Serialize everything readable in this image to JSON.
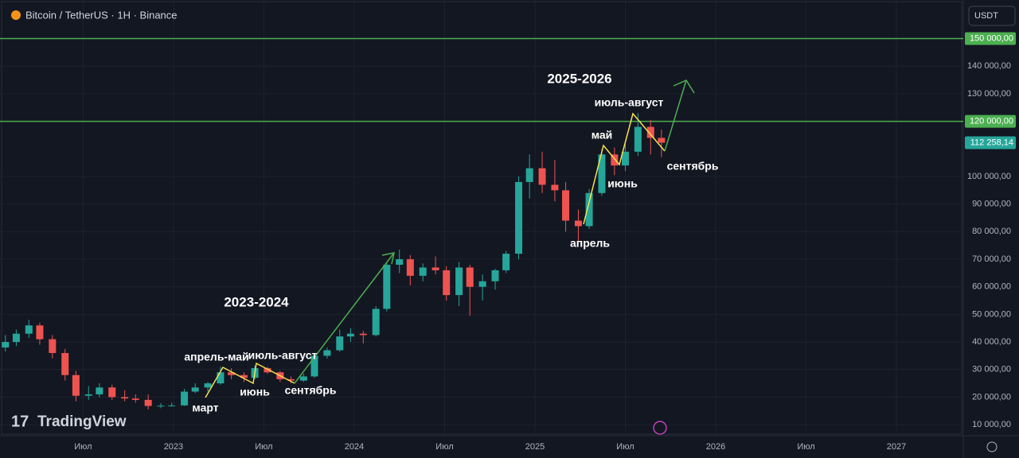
{
  "header": {
    "symbol": "Bitcoin / TetherUS · 1H · Binance",
    "currency": "USDT",
    "watermark": "TradingView"
  },
  "chart_data": {
    "type": "candlestick",
    "x": [
      2022.07,
      2022.13,
      2022.2,
      2022.26,
      2022.33,
      2022.4,
      2022.46,
      2022.53,
      2022.59,
      2022.66,
      2022.73,
      2022.79,
      2022.86,
      2022.93,
      2022.99,
      2023.06,
      2023.12,
      2023.19,
      2023.26,
      2023.32,
      2023.39,
      2023.45,
      2023.52,
      2023.59,
      2023.65,
      2023.72,
      2023.78,
      2023.85,
      2023.92,
      2023.98,
      2024.05,
      2024.12,
      2024.18,
      2024.25,
      2024.31,
      2024.38,
      2024.45,
      2024.51,
      2024.58,
      2024.64,
      2024.71,
      2024.78,
      2024.84,
      2024.91,
      2024.97,
      2025.04,
      2025.11,
      2025.17,
      2025.24,
      2025.3,
      2025.37,
      2025.44,
      2025.5,
      2025.57,
      2025.64,
      2025.7
    ],
    "candles": [
      [
        38000,
        42500,
        36500,
        40000
      ],
      [
        40000,
        44500,
        38500,
        43000
      ],
      [
        43000,
        48000,
        41500,
        46000
      ],
      [
        46000,
        47000,
        39000,
        41000
      ],
      [
        41000,
        42500,
        34000,
        36000
      ],
      [
        36000,
        37500,
        26000,
        28000
      ],
      [
        28000,
        29500,
        18500,
        20500
      ],
      [
        20500,
        24000,
        19000,
        21000
      ],
      [
        21000,
        25000,
        20000,
        23500
      ],
      [
        23500,
        24500,
        19000,
        20000
      ],
      [
        20000,
        22500,
        18500,
        19500
      ],
      [
        19500,
        21000,
        18000,
        19000
      ],
      [
        19000,
        21000,
        15500,
        16800
      ],
      [
        16800,
        17800,
        16000,
        16900
      ],
      [
        16900,
        18000,
        16500,
        17000
      ],
      [
        17000,
        23000,
        16800,
        22000
      ],
      [
        22000,
        25000,
        21500,
        23500
      ],
      [
        23500,
        25500,
        22000,
        25000
      ],
      [
        25000,
        31000,
        24500,
        29000
      ],
      [
        29000,
        30500,
        26500,
        28000
      ],
      [
        28000,
        29000,
        25500,
        27000
      ],
      [
        27000,
        31500,
        26500,
        30500
      ],
      [
        30500,
        31000,
        28500,
        29000
      ],
      [
        29000,
        29500,
        25500,
        26500
      ],
      [
        26500,
        27500,
        25000,
        26000
      ],
      [
        26000,
        28500,
        25500,
        27500
      ],
      [
        27500,
        35500,
        27000,
        35000
      ],
      [
        35000,
        38000,
        34000,
        37000
      ],
      [
        37000,
        44500,
        36500,
        42000
      ],
      [
        42000,
        45000,
        40000,
        43000
      ],
      [
        43000,
        44000,
        39500,
        42500
      ],
      [
        42500,
        53000,
        42000,
        52000
      ],
      [
        52000,
        69000,
        51000,
        68000
      ],
      [
        68000,
        73500,
        65000,
        70000
      ],
      [
        70000,
        71500,
        60500,
        64000
      ],
      [
        64000,
        68500,
        62000,
        67000
      ],
      [
        67000,
        71000,
        64500,
        66000
      ],
      [
        66000,
        67500,
        55000,
        57000
      ],
      [
        57000,
        69000,
        53000,
        67000
      ],
      [
        67000,
        68000,
        49500,
        60000
      ],
      [
        60000,
        64500,
        55000,
        62000
      ],
      [
        62000,
        66500,
        59000,
        66000
      ],
      [
        66000,
        73000,
        65000,
        72000
      ],
      [
        72000,
        100000,
        70000,
        98000
      ],
      [
        98000,
        108000,
        92000,
        103000
      ],
      [
        103000,
        109000,
        94000,
        97000
      ],
      [
        97000,
        106000,
        91000,
        95000
      ],
      [
        95000,
        98000,
        80000,
        84000
      ],
      [
        84000,
        88000,
        76500,
        82000
      ],
      [
        82000,
        95500,
        81000,
        94000
      ],
      [
        94000,
        110000,
        93000,
        108000
      ],
      [
        108000,
        110500,
        100500,
        104000
      ],
      [
        104000,
        112000,
        102000,
        109000
      ],
      [
        109000,
        123000,
        107500,
        118000
      ],
      [
        118000,
        120500,
        108000,
        114000
      ],
      [
        114000,
        117000,
        107000,
        112258.14
      ]
    ],
    "up_color": "#26a69a",
    "down_color": "#ef5350",
    "xlim": [
      2022.04,
      2027.37
    ],
    "xticks": [
      {
        "value": 2022.5,
        "label": "Июл"
      },
      2023,
      {
        "value": 2023.5,
        "label": "Июл"
      },
      2024,
      {
        "value": 2024.5,
        "label": "Июл"
      },
      2025,
      {
        "value": 2025.5,
        "label": "Июл"
      },
      2026,
      {
        "value": 2026.5,
        "label": "Июл"
      },
      2027
    ],
    "ylim": [
      6000,
      164000
    ],
    "yticks": [
      {
        "value": 10000,
        "label": "10 000,00"
      },
      {
        "value": 20000,
        "label": "20 000,00"
      },
      {
        "value": 30000,
        "label": "30 000,00"
      },
      {
        "value": 40000,
        "label": "40 000,00"
      },
      {
        "value": 50000,
        "label": "50 000,00"
      },
      {
        "value": 60000,
        "label": "60 000,00"
      },
      {
        "value": 70000,
        "label": "70 000,00"
      },
      {
        "value": 80000,
        "label": "80 000,00"
      },
      {
        "value": 90000,
        "label": "90 000,00"
      },
      {
        "value": 100000,
        "label": "100 000,00"
      },
      {
        "value": 130000,
        "label": "130 000,00"
      },
      {
        "value": 140000,
        "label": "140 000,00"
      }
    ],
    "levels": [
      {
        "value": 150000,
        "label": "150 000,00"
      },
      {
        "value": 120000,
        "label": "120 000,00"
      }
    ],
    "level_color": "#4caf50",
    "last_price": {
      "value": 112258.14,
      "label": "112 258,14"
    },
    "annotations": [
      "2025-2026",
      "июль-август",
      "май",
      "июнь",
      "сентябрь",
      "апрель",
      "2023-2024",
      "апрель-май",
      "июль-август",
      "июнь",
      "март",
      "сентябрь"
    ]
  }
}
